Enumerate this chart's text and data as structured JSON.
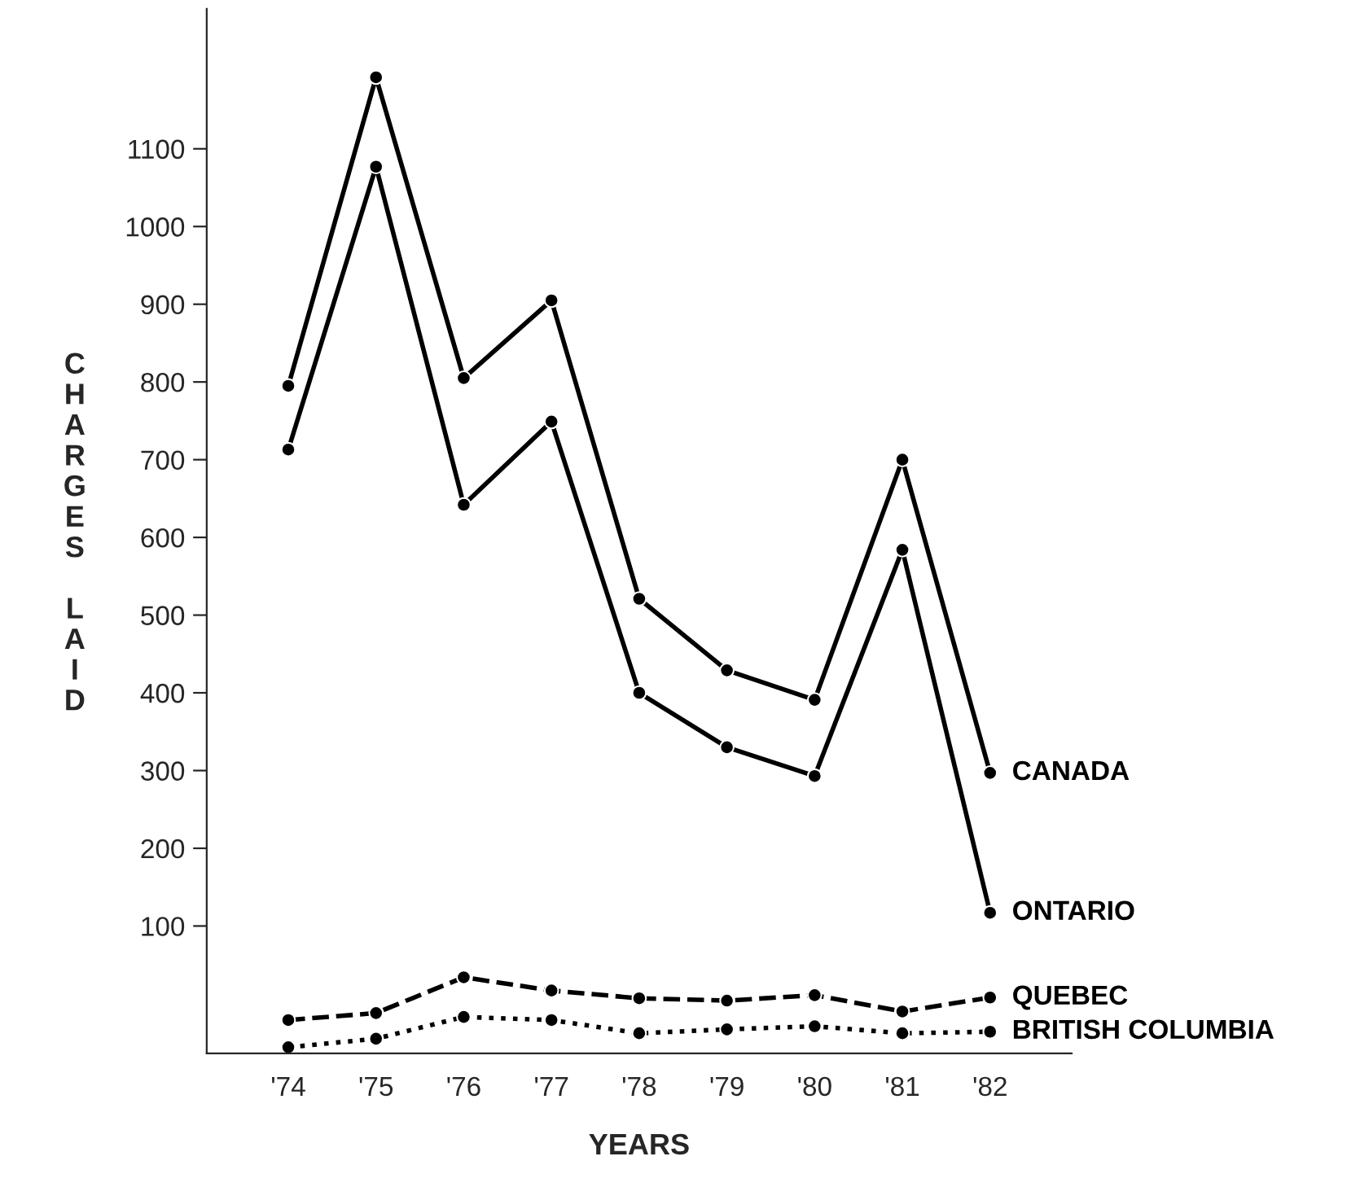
{
  "chart_data": {
    "type": "line",
    "xlabel": "YEARS",
    "ylabel": "CHARGES LAID",
    "categories": [
      "'74",
      "'75",
      "'76",
      "'77",
      "'78",
      "'79",
      "'80",
      "'81",
      "'82"
    ],
    "series": [
      {
        "name": "CANADA",
        "color": "#000000",
        "line_style": "solid",
        "values": [
          795,
          1192,
          805,
          905,
          521,
          429,
          391,
          700,
          297
        ]
      },
      {
        "name": "ONTARIO",
        "color": "#000000",
        "line_style": "solid",
        "values": [
          713,
          1077,
          642,
          749,
          400,
          330,
          293,
          584,
          117
        ]
      },
      {
        "name": "QUEBEC",
        "color": "#000000",
        "line_style": "dashed",
        "values": [
          -21,
          -12,
          34,
          17,
          7,
          4,
          11,
          -10,
          8
        ]
      },
      {
        "name": "BRITISH COLUMBIA",
        "color": "#000000",
        "line_style": "dotted",
        "values": [
          -56,
          -45,
          -17,
          -21,
          -38,
          -33,
          -29,
          -38,
          -36
        ]
      }
    ],
    "ylim": [
      -64,
      1280
    ],
    "yticks": [
      100,
      200,
      300,
      400,
      500,
      600,
      700,
      800,
      900,
      1000,
      1100
    ],
    "marker": "circle",
    "grid": false,
    "legend": false
  }
}
